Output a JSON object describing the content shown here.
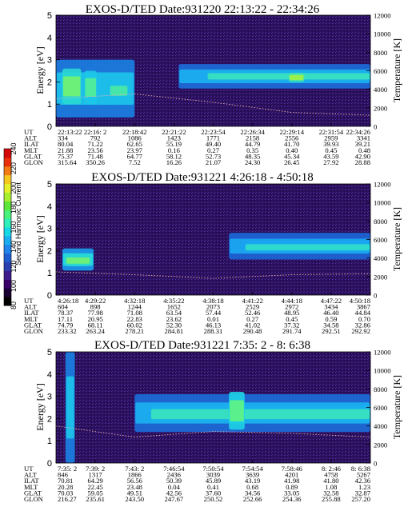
{
  "colorbar": {
    "label": "Second Harmonic Current",
    "ticks": [
      "80",
      "100",
      "120",
      "140",
      "160",
      "180",
      "200",
      "220",
      "240"
    ],
    "min": 80,
    "max": 240,
    "colors": [
      "#000000",
      "#1a0033",
      "#3a0068",
      "#3f1c8c",
      "#2b3fae",
      "#1e5fd0",
      "#1f86ee",
      "#1aaef0",
      "#15d7e6",
      "#2ff0b8",
      "#49f27a",
      "#5fe63a",
      "#a7ee2e",
      "#e6f02a",
      "#f6c71e",
      "#f37a14",
      "#ea2f0c",
      "#d40a0a"
    ]
  },
  "row_labels": [
    "UT",
    "ALT",
    "ILAT",
    "MLT",
    "GLAT",
    "GLON"
  ],
  "panels": [
    {
      "title": "EXOS-D/TED   Date:931220  22:13:22 - 22:34:26",
      "ylabel_left": "Energy [eV]",
      "ylabel_right": "Temperature [K]",
      "yticks_left": [
        "0",
        "1",
        "2",
        "3",
        "4",
        "5"
      ],
      "yticks_right": [
        "0",
        "2000",
        "4000",
        "6000",
        "8000",
        "10000",
        "12000"
      ],
      "columns": [
        {
          "UT": "22:13:22",
          "ALT": "334",
          "ILAT": "80.04",
          "MLT": "21.88",
          "GLAT": "75.37",
          "GLON": "315.64"
        },
        {
          "UT": "22:16: 2",
          "ALT": "792",
          "ILAT": "71.22",
          "MLT": "23.56",
          "GLAT": "71.48",
          "GLON": "350.26"
        },
        {
          "UT": "22:18:42",
          "ALT": "1086",
          "ILAT": "62.65",
          "MLT": "23.97",
          "GLAT": "64.77",
          "GLON": "7.52"
        },
        {
          "UT": "22:21:22",
          "ALT": "1423",
          "ILAT": "55.19",
          "MLT": "0.16",
          "GLAT": "58.12",
          "GLON": "16.26"
        },
        {
          "UT": "22:23:54",
          "ALT": "1771",
          "ILAT": "49.40",
          "MLT": "0.27",
          "GLAT": "52.73",
          "GLON": "21.07"
        },
        {
          "UT": "22:26:34",
          "ALT": "2158",
          "ILAT": "44.79",
          "MLT": "0.35",
          "GLAT": "48.35",
          "GLON": "24.30"
        },
        {
          "UT": "22:29:14",
          "ALT": "2556",
          "ILAT": "41.70",
          "MLT": "0.40",
          "GLAT": "45.34",
          "GLON": "26.45"
        },
        {
          "UT": "22:31:54",
          "ALT": "2959",
          "ILAT": "39.93",
          "MLT": "0.45",
          "GLAT": "43.59",
          "GLON": "27.92"
        },
        {
          "UT": "22:34:26",
          "ALT": "3341",
          "ILAT": "39.21",
          "MLT": "0.48",
          "GLAT": "42.90",
          "GLON": "28.88"
        }
      ]
    },
    {
      "title": "EXOS-D/TED   Date:931221  4:26:18 - 4:50:18",
      "ylabel_left": "Energy [eV]",
      "ylabel_right": "Temperature [K]",
      "yticks_left": [
        "0",
        "1",
        "2",
        "3",
        "4",
        "5"
      ],
      "yticks_right": [
        "0",
        "2000",
        "4000",
        "6000",
        "8000",
        "10000",
        "12000"
      ],
      "columns": [
        {
          "UT": "4:26:18",
          "ALT": "604",
          "ILAT": "78.37",
          "MLT": "17.11",
          "GLAT": "74.79",
          "GLON": "233.32"
        },
        {
          "UT": "4:29:22",
          "ALT": "898",
          "ILAT": "77.98",
          "MLT": "20.95",
          "GLAT": "68.11",
          "GLON": "263.24"
        },
        {
          "UT": "4:32:18",
          "ALT": "1244",
          "ILAT": "71.08",
          "MLT": "22.83",
          "GLAT": "60.02",
          "GLON": "278.21"
        },
        {
          "UT": "4:35:22",
          "ALT": "1652",
          "ILAT": "63.54",
          "MLT": "23.62",
          "GLAT": "52.30",
          "GLON": "284.81"
        },
        {
          "UT": "4:38:18",
          "ALT": "2073",
          "ILAT": "57.44",
          "MLT": "0.01",
          "GLAT": "46.13",
          "GLON": "288.31"
        },
        {
          "UT": "4:41:22",
          "ALT": "2529",
          "ILAT": "52.46",
          "MLT": "0.27",
          "GLAT": "41.02",
          "GLON": "290.48"
        },
        {
          "UT": "4:44:18",
          "ALT": "2972",
          "ILAT": "48.95",
          "MLT": "0.45",
          "GLAT": "37.32",
          "GLON": "291.74"
        },
        {
          "UT": "4:47:22",
          "ALT": "3434",
          "ILAT": "46.40",
          "MLT": "0.59",
          "GLAT": "34.58",
          "GLON": "292.51"
        },
        {
          "UT": "4:50:18",
          "ALT": "3867",
          "ILAT": "44.84",
          "MLT": "0.70",
          "GLAT": "32.86",
          "GLON": "292.92"
        }
      ]
    },
    {
      "title": "EXOS-D/TED   Date:931221  7:35: 2 - 8: 6:38",
      "ylabel_left": "Energy [eV]",
      "ylabel_right": "Temperature [K]",
      "yticks_left": [
        "0",
        "1",
        "2",
        "3",
        "4",
        "5"
      ],
      "yticks_right": [
        "0",
        "2000",
        "4000",
        "6000",
        "8000",
        "10000",
        "12000"
      ],
      "columns": [
        {
          "UT": "7:35: 2",
          "ALT": "846",
          "ILAT": "70.81",
          "MLT": "20.28",
          "GLAT": "70.03",
          "GLON": "216.27"
        },
        {
          "UT": "7:39: 2",
          "ALT": "1317",
          "ILAT": "64.29",
          "MLT": "22.45",
          "GLAT": "59.05",
          "GLON": "235.61"
        },
        {
          "UT": "7:43: 2",
          "ALT": "1866",
          "ILAT": "56.56",
          "MLT": "23.48",
          "GLAT": "49.51",
          "GLON": "243.50"
        },
        {
          "UT": "7:46:54",
          "ALT": "2436",
          "ILAT": "50.39",
          "MLT": "0.04",
          "GLAT": "42.56",
          "GLON": "247.67"
        },
        {
          "UT": "7:50:54",
          "ALT": "3039",
          "ILAT": "45.89",
          "MLT": "0.41",
          "GLAT": "37.60",
          "GLON": "250.52"
        },
        {
          "UT": "7:54:54",
          "ALT": "3639",
          "ILAT": "43.19",
          "MLT": "0.68",
          "GLAT": "34.56",
          "GLON": "252.66"
        },
        {
          "UT": "7:58:46",
          "ALT": "4201",
          "ILAT": "41.98",
          "MLT": "0.89",
          "GLAT": "33.05",
          "GLON": "254.36"
        },
        {
          "UT": "8: 2:46",
          "ALT": "4758",
          "ILAT": "41.80",
          "MLT": "1.08",
          "GLAT": "32.58",
          "GLON": "255.88"
        },
        {
          "UT": "8: 6:38",
          "ALT": "5267",
          "ILAT": "42.36",
          "MLT": "1.23",
          "GLAT": "32.87",
          "GLON": "257.20"
        }
      ]
    }
  ],
  "chart_data": [
    {
      "type": "heatmap",
      "title": "EXOS-D/TED   Date:931220  22:13:22 - 22:34:26",
      "ylabel": "Energy [eV]",
      "y2label": "Temperature [K]",
      "ylim": [
        0,
        5
      ],
      "y2lim": [
        0,
        12000
      ],
      "x": [
        "22:13:22",
        "22:16: 2",
        "22:18:42",
        "22:21:22",
        "22:23:54",
        "22:26:34",
        "22:29:14",
        "22:31:54",
        "22:34:26"
      ],
      "bands": [
        {
          "x0": 0.0,
          "x1": 0.25,
          "e0": 0.4,
          "e1": 3.0,
          "level": 0.55
        },
        {
          "x0": 0.02,
          "x1": 0.08,
          "e0": 1.0,
          "e1": 2.6,
          "level": 0.78
        },
        {
          "x0": 0.09,
          "x1": 0.13,
          "e0": 1.0,
          "e1": 2.5,
          "level": 0.72
        },
        {
          "x0": 0.17,
          "x1": 0.23,
          "e0": 1.2,
          "e1": 2.0,
          "level": 0.7
        },
        {
          "x0": 0.39,
          "x1": 1.0,
          "e0": 1.7,
          "e1": 2.8,
          "level": 0.5
        },
        {
          "x0": 0.48,
          "x1": 1.0,
          "e0": 2.0,
          "e1": 2.5,
          "level": 0.66
        },
        {
          "x0": 0.74,
          "x1": 0.79,
          "e0": 2.0,
          "e1": 2.4,
          "level": 0.85
        }
      ],
      "temperature": {
        "x": [
          0.0,
          0.25,
          0.5,
          0.75,
          1.0
        ],
        "y": [
          3000,
          3500,
          2600,
          1500,
          1200
        ]
      }
    },
    {
      "type": "heatmap",
      "title": "EXOS-D/TED   Date:931221  4:26:18 - 4:50:18",
      "ylabel": "Energy [eV]",
      "y2label": "Temperature [K]",
      "ylim": [
        0,
        5
      ],
      "y2lim": [
        0,
        12000
      ],
      "x": [
        "4:26:18",
        "4:29:22",
        "4:32:18",
        "4:35:22",
        "4:38:18",
        "4:41:22",
        "4:44:18",
        "4:47:22",
        "4:50:18"
      ],
      "bands": [
        {
          "x0": 0.02,
          "x1": 0.12,
          "e0": 1.1,
          "e1": 2.1,
          "level": 0.62
        },
        {
          "x0": 0.03,
          "x1": 0.11,
          "e0": 1.3,
          "e1": 1.8,
          "level": 0.78
        },
        {
          "x0": 0.55,
          "x1": 1.0,
          "e0": 1.6,
          "e1": 2.8,
          "level": 0.48
        },
        {
          "x0": 0.6,
          "x1": 1.0,
          "e0": 1.9,
          "e1": 2.4,
          "level": 0.64
        }
      ],
      "temperature": {
        "x": [
          0.0,
          0.25,
          0.5,
          0.75,
          1.0
        ],
        "y": [
          2500,
          2200,
          1800,
          2200,
          2300
        ]
      }
    },
    {
      "type": "heatmap",
      "title": "EXOS-D/TED   Date:931221  7:35: 2 - 8: 6:38",
      "ylabel": "Energy [eV]",
      "y2label": "Temperature [K]",
      "ylim": [
        0,
        5
      ],
      "y2lim": [
        0,
        12000
      ],
      "x": [
        "7:35: 2",
        "7:39: 2",
        "7:43: 2",
        "7:46:54",
        "7:50:54",
        "7:54:54",
        "7:58:46",
        "8: 2:46",
        "8: 6:38"
      ],
      "bands": [
        {
          "x0": 0.03,
          "x1": 0.06,
          "e0": 0.0,
          "e1": 5.0,
          "level": 0.55
        },
        {
          "x0": 0.25,
          "x1": 1.0,
          "e0": 1.4,
          "e1": 3.1,
          "level": 0.5
        },
        {
          "x0": 0.3,
          "x1": 1.0,
          "e0": 1.8,
          "e1": 2.6,
          "level": 0.66
        },
        {
          "x0": 0.55,
          "x1": 0.6,
          "e0": 1.5,
          "e1": 3.2,
          "level": 0.75
        }
      ],
      "temperature": {
        "x": [
          0.0,
          0.25,
          0.5,
          0.75,
          1.0
        ],
        "y": [
          4000,
          2800,
          3400,
          3200,
          2800
        ]
      }
    }
  ]
}
